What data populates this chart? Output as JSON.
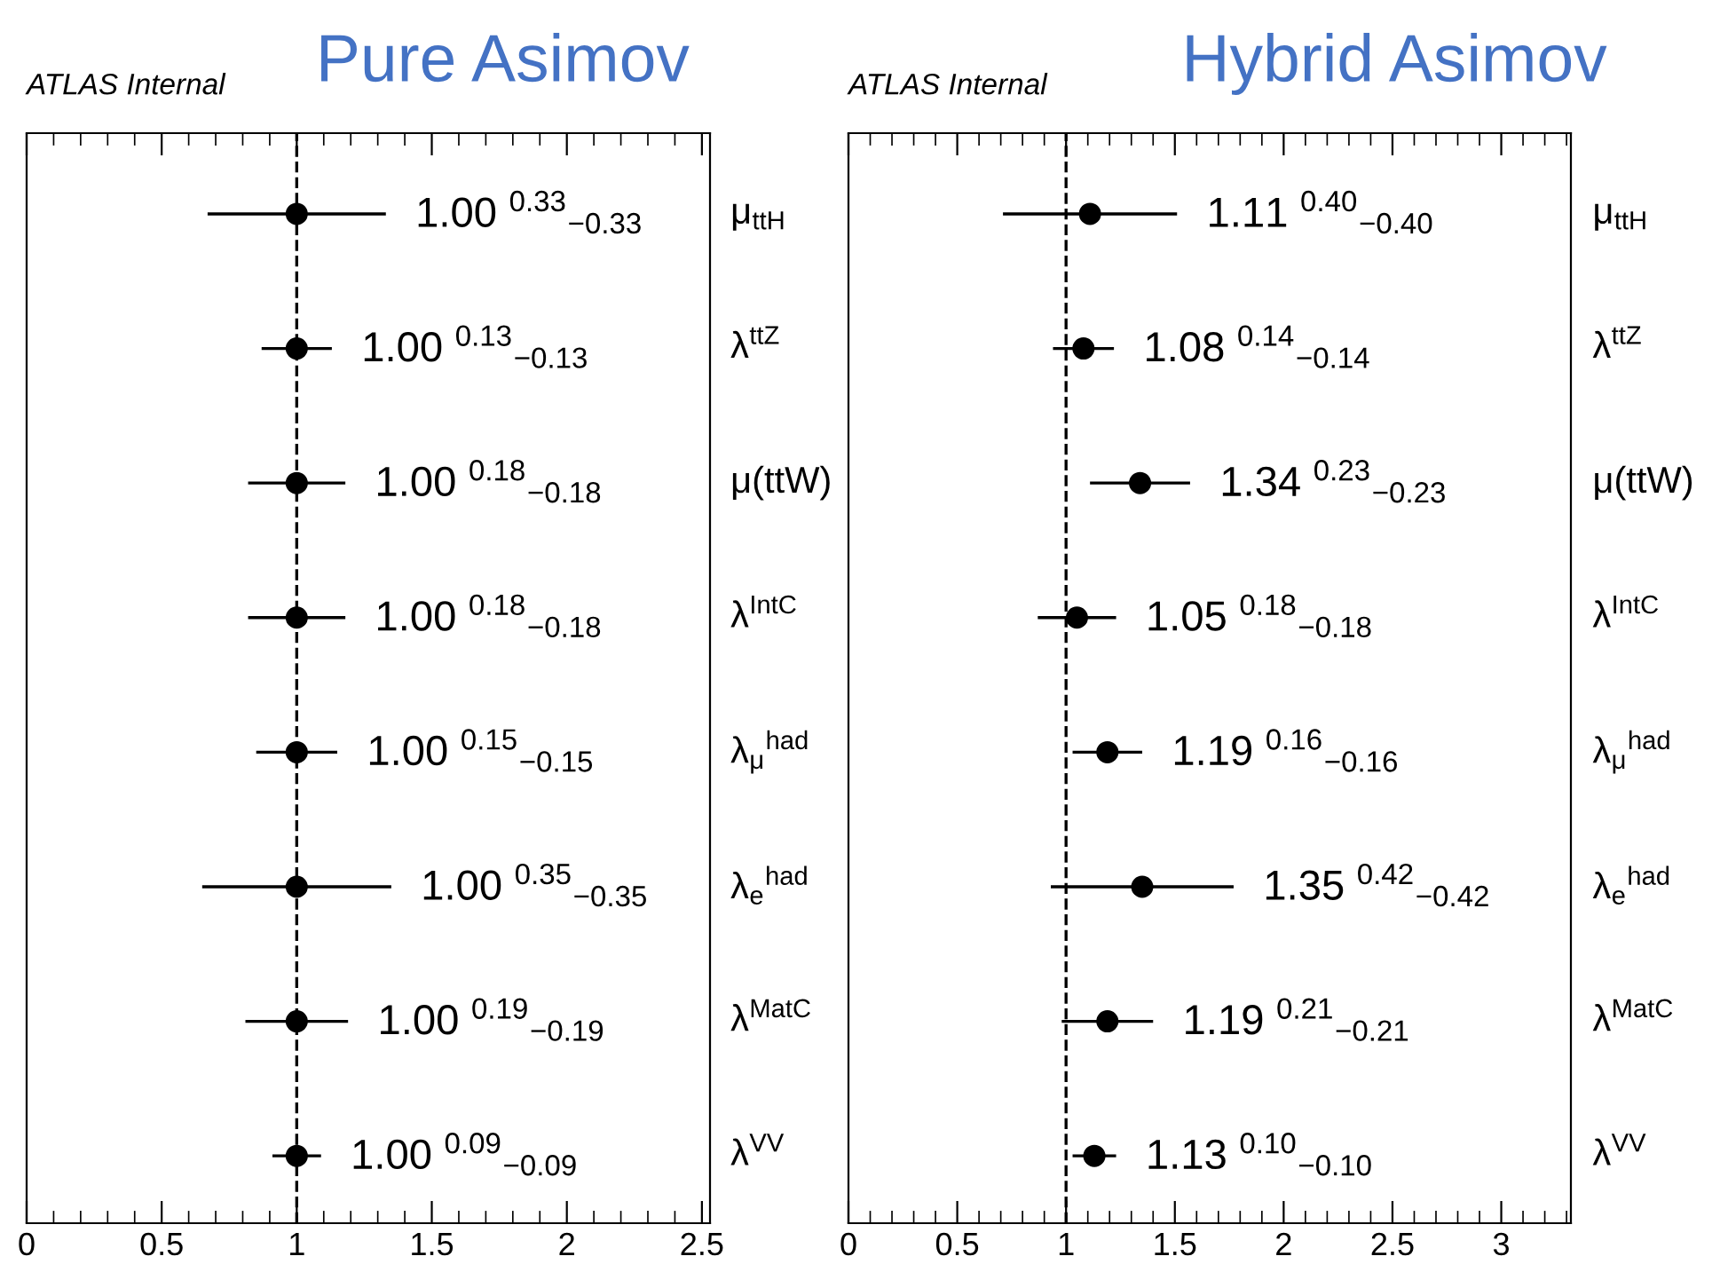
{
  "chart_data": [
    {
      "type": "scatter",
      "title": "Pure Asimov",
      "orientation": "horizontal",
      "marker": "circle",
      "grid": false,
      "annotations": [
        "ATLAS Internal"
      ],
      "categories": [
        "μ$_{ttH}$",
        "λ$^{ttZ}$",
        "μ(ttW)",
        "λ$^{IntC}$",
        "λ$_{μ}$$^{had}$",
        "λ$_{e}$$^{had}$",
        "λ$^{MatC}$",
        "λ$^{VV}$"
      ],
      "series": [
        {
          "color": "#000000",
          "values": [
            1.0,
            1.0,
            1.0,
            1.0,
            1.0,
            1.0,
            1.0,
            1.0
          ],
          "errors": [
            0.33,
            0.13,
            0.18,
            0.18,
            0.15,
            0.35,
            0.19,
            0.09
          ],
          "value_labels": [
            "1.00 $^{0.33}$$_{−0.33}$",
            "1.00 $^{0.13}$$_{−0.13}$",
            "1.00 $^{0.18}$$_{−0.18}$",
            "1.00 $^{0.18}$$_{−0.18}$",
            "1.00 $^{0.15}$$_{−0.15}$",
            "1.00 $^{0.35}$$_{−0.35}$",
            "1.00 $^{0.19}$$_{−0.19}$",
            "1.00 $^{0.09}$$_{−0.09}$"
          ]
        }
      ],
      "xlim": [
        0,
        2.53
      ],
      "xticks": [
        0,
        0.5,
        1,
        1.5,
        2,
        2.5
      ],
      "ref_lines": [
        {
          "axis": "x",
          "value": 1,
          "line_style": "dashed",
          "color": "#000000"
        }
      ]
    },
    {
      "type": "scatter",
      "title": "Hybrid Asimov",
      "orientation": "horizontal",
      "marker": "circle",
      "grid": false,
      "annotations": [
        "ATLAS Internal"
      ],
      "categories": [
        "μ$_{ttH}$",
        "λ$^{ttZ}$",
        "μ(ttW)",
        "λ$^{IntC}$",
        "λ$_{μ}$$^{had}$",
        "λ$_{e}$$^{had}$",
        "λ$^{MatC}$",
        "λ$^{VV}$"
      ],
      "series": [
        {
          "color": "#000000",
          "values": [
            1.11,
            1.08,
            1.34,
            1.05,
            1.19,
            1.35,
            1.19,
            1.13
          ],
          "errors": [
            0.4,
            0.14,
            0.23,
            0.18,
            0.16,
            0.42,
            0.21,
            0.1
          ],
          "value_labels": [
            "1.11 $^{0.40}$$_{−0.40}$",
            "1.08 $^{0.14}$$_{−0.14}$",
            "1.34 $^{0.23}$$_{−0.23}$",
            "1.05 $^{0.18}$$_{−0.18}$",
            "1.19 $^{0.16}$$_{−0.16}$",
            "1.35 $^{0.42}$$_{−0.42}$",
            "1.19 $^{0.21}$$_{−0.21}$",
            "1.13 $^{0.10}$$_{−0.10}$"
          ]
        }
      ],
      "xlim": [
        0,
        3.32
      ],
      "xticks": [
        0,
        0.5,
        1,
        1.5,
        2,
        2.5,
        3
      ],
      "ref_lines": [
        {
          "axis": "x",
          "value": 1,
          "line_style": "dashed",
          "color": "#000000"
        }
      ]
    }
  ]
}
